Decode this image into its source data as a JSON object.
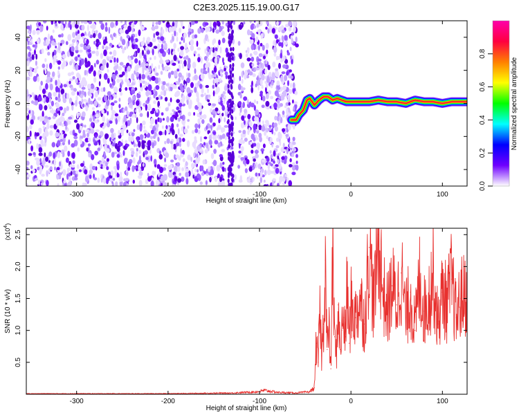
{
  "figure": {
    "title": "C2E3.2025.115.19.00.G17"
  },
  "chart_data": [
    {
      "type": "heatmap",
      "xlabel": "Height of straight line (km)",
      "ylabel": "Frequency (Hz)",
      "xlim": [
        -355,
        127
      ],
      "ylim": [
        -50,
        50
      ],
      "xticks": [
        -300,
        -200,
        -100,
        0,
        100
      ],
      "yticks": [
        -40,
        -20,
        0,
        20,
        40
      ],
      "noise_region_x": [
        -355,
        -62
      ],
      "gap_x": [
        -128,
        -123
      ],
      "signal_track": {
        "x": [
          -65,
          -60,
          -57,
          -52,
          -48,
          -45,
          -40,
          -35,
          -30,
          -25,
          -20,
          -15,
          -10,
          -5,
          0,
          10,
          20,
          30,
          40,
          50,
          60,
          70,
          80,
          90,
          100,
          110,
          120,
          127
        ],
        "freq": [
          -10,
          -10,
          -7,
          -4,
          2,
          3,
          -1,
          2,
          4,
          4,
          2,
          3,
          2,
          1,
          1,
          1,
          1,
          2,
          1,
          1,
          0,
          2,
          1,
          1,
          0,
          1,
          1,
          1
        ]
      },
      "colorbar": {
        "label": "Normalized spectral amplitude",
        "ticks": [
          0.0,
          0.2,
          0.4,
          0.6,
          0.8
        ],
        "range": [
          0,
          1
        ],
        "colors": [
          "#ffffff",
          "#6f00ff",
          "#0000ff",
          "#00ffff",
          "#00ff00",
          "#ffff00",
          "#ff8000",
          "#ff0040",
          "#ff00aa"
        ]
      }
    },
    {
      "type": "line",
      "xlabel": "Height of straight line (km)",
      "ylabel": "SNR (10 * v/v)",
      "scale_label": "(x10",
      "scale_exp": "4",
      "xlim": [
        -355,
        127
      ],
      "ylim": [
        0,
        2.6
      ],
      "xticks": [
        -300,
        -200,
        -100,
        0,
        100
      ],
      "yticks": [
        0.5,
        1.0,
        1.5,
        2.0,
        2.5
      ],
      "color": "#e8302e",
      "series": [
        {
          "x": [
            -355,
            -300,
            -200,
            -130,
            -100,
            -95,
            -80,
            -60,
            -45,
            -40,
            -38,
            -36,
            -34,
            -32,
            -30,
            -28,
            -26,
            -24,
            -22,
            -20,
            -18,
            -16,
            -14,
            -12,
            -10,
            -8,
            -6,
            -4,
            -2,
            0,
            5,
            10,
            15,
            20,
            25,
            30,
            35,
            40,
            45,
            50,
            55,
            60,
            65,
            70,
            75,
            80,
            85,
            90,
            95,
            100,
            105,
            110,
            115,
            120,
            127
          ],
          "y": [
            0.01,
            0.01,
            0.01,
            0.02,
            0.04,
            0.06,
            0.03,
            0.02,
            0.04,
            0.1,
            0.8,
            0.5,
            1.3,
            0.6,
            1.1,
            2.1,
            0.7,
            1.0,
            0.4,
            2.3,
            0.9,
            0.6,
            1.4,
            0.7,
            1.0,
            1.2,
            0.9,
            1.8,
            0.8,
            1.4,
            1.2,
            1.5,
            1.1,
            2.3,
            1.4,
            2.5,
            1.6,
            1.3,
            1.7,
            1.4,
            1.9,
            1.2,
            1.6,
            1.0,
            1.8,
            1.3,
            1.5,
            1.9,
            1.1,
            1.6,
            1.4,
            1.8,
            1.2,
            1.5,
            1.6
          ]
        }
      ]
    }
  ]
}
